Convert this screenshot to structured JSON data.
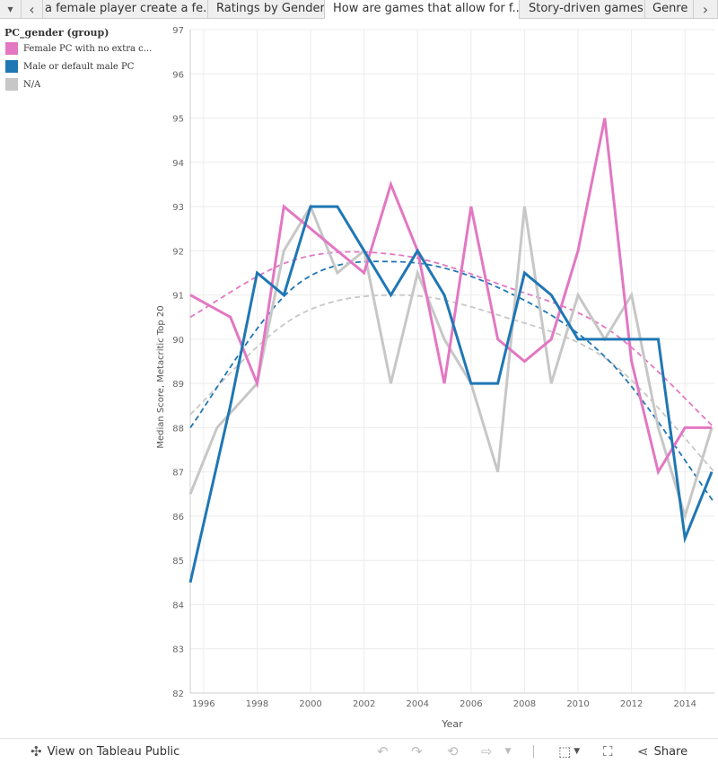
{
  "tabs": {
    "menu_glyph": "▾",
    "prev_glyph": "‹",
    "next_glyph": "›",
    "items": [
      {
        "label": "a female player create a fe..."
      },
      {
        "label": "Ratings by Gender"
      },
      {
        "label": "How are games that allow for f...",
        "active": true
      },
      {
        "label": "Story-driven games"
      },
      {
        "label": "Genre"
      }
    ]
  },
  "legend": {
    "title": "PC_gender (group)",
    "items": [
      {
        "label": "Female PC with no extra c...",
        "color": "#e377c2"
      },
      {
        "label": "Male or default male PC",
        "color": "#1f77b4"
      },
      {
        "label": "N/A",
        "color": "#c7c7c7"
      }
    ]
  },
  "chart_data": {
    "type": "line",
    "title": "",
    "xlabel": "Year",
    "ylabel": "Median Score, Metacritic Top 20",
    "xlim": [
      1995.5,
      2015.1
    ],
    "ylim": [
      82,
      97
    ],
    "x_ticks": [
      1996,
      1998,
      2000,
      2002,
      2004,
      2006,
      2008,
      2010,
      2012,
      2014
    ],
    "y_ticks": [
      82,
      83,
      84,
      85,
      86,
      87,
      88,
      89,
      90,
      91,
      92,
      93,
      94,
      95,
      96,
      97
    ],
    "grid": true,
    "series": [
      {
        "name": "N/A",
        "color": "#c7c7c7",
        "x": [
          1995.5,
          1996.5,
          1998,
          1999,
          2000,
          2001,
          2002,
          2003,
          2004,
          2005,
          2006,
          2007,
          2008,
          2009,
          2010,
          2011,
          2012,
          2013,
          2014,
          2015
        ],
        "y": [
          86.5,
          88,
          89,
          92,
          93,
          91.5,
          92,
          89,
          91.5,
          90,
          89,
          87,
          93,
          89,
          91,
          90,
          91,
          88,
          86,
          88
        ],
        "trend": [
          88.3,
          90.5,
          91,
          90.5,
          89.5,
          87
        ]
      },
      {
        "name": "Female PC with no extra c...",
        "color": "#e377c2",
        "x": [
          1995.5,
          1997,
          1998,
          1999,
          2000,
          2001,
          2002,
          2003,
          2004,
          2005,
          2006,
          2007,
          2008,
          2009,
          2010,
          2011,
          2012,
          2013,
          2014,
          2015
        ],
        "y": [
          91,
          90.5,
          89,
          93,
          92.5,
          92,
          91.5,
          93.5,
          92,
          89,
          93,
          90,
          89.5,
          90,
          92,
          95,
          89.5,
          87,
          88,
          88
        ],
        "trend": [
          90.5,
          91.8,
          91.9,
          91.2,
          90.2,
          88
        ]
      },
      {
        "name": "Male or default male PC",
        "color": "#1f77b4",
        "x": [
          1995.5,
          1997,
          1998,
          1999,
          2000,
          2001,
          2002,
          2003,
          2004,
          2005,
          2006,
          2007,
          2008,
          2009,
          2010,
          2011,
          2012,
          2013,
          2014,
          2015
        ],
        "y": [
          84.5,
          88.5,
          91.5,
          91,
          93,
          93,
          92,
          91,
          92,
          91,
          89,
          89,
          91.5,
          91,
          90,
          90,
          90,
          90,
          85.5,
          87
        ],
        "trend": [
          88,
          91.2,
          91.75,
          91.1,
          89.5,
          86.3
        ]
      }
    ]
  },
  "toolbar": {
    "view_label": "View on Tableau Public",
    "share_label": "Share"
  }
}
